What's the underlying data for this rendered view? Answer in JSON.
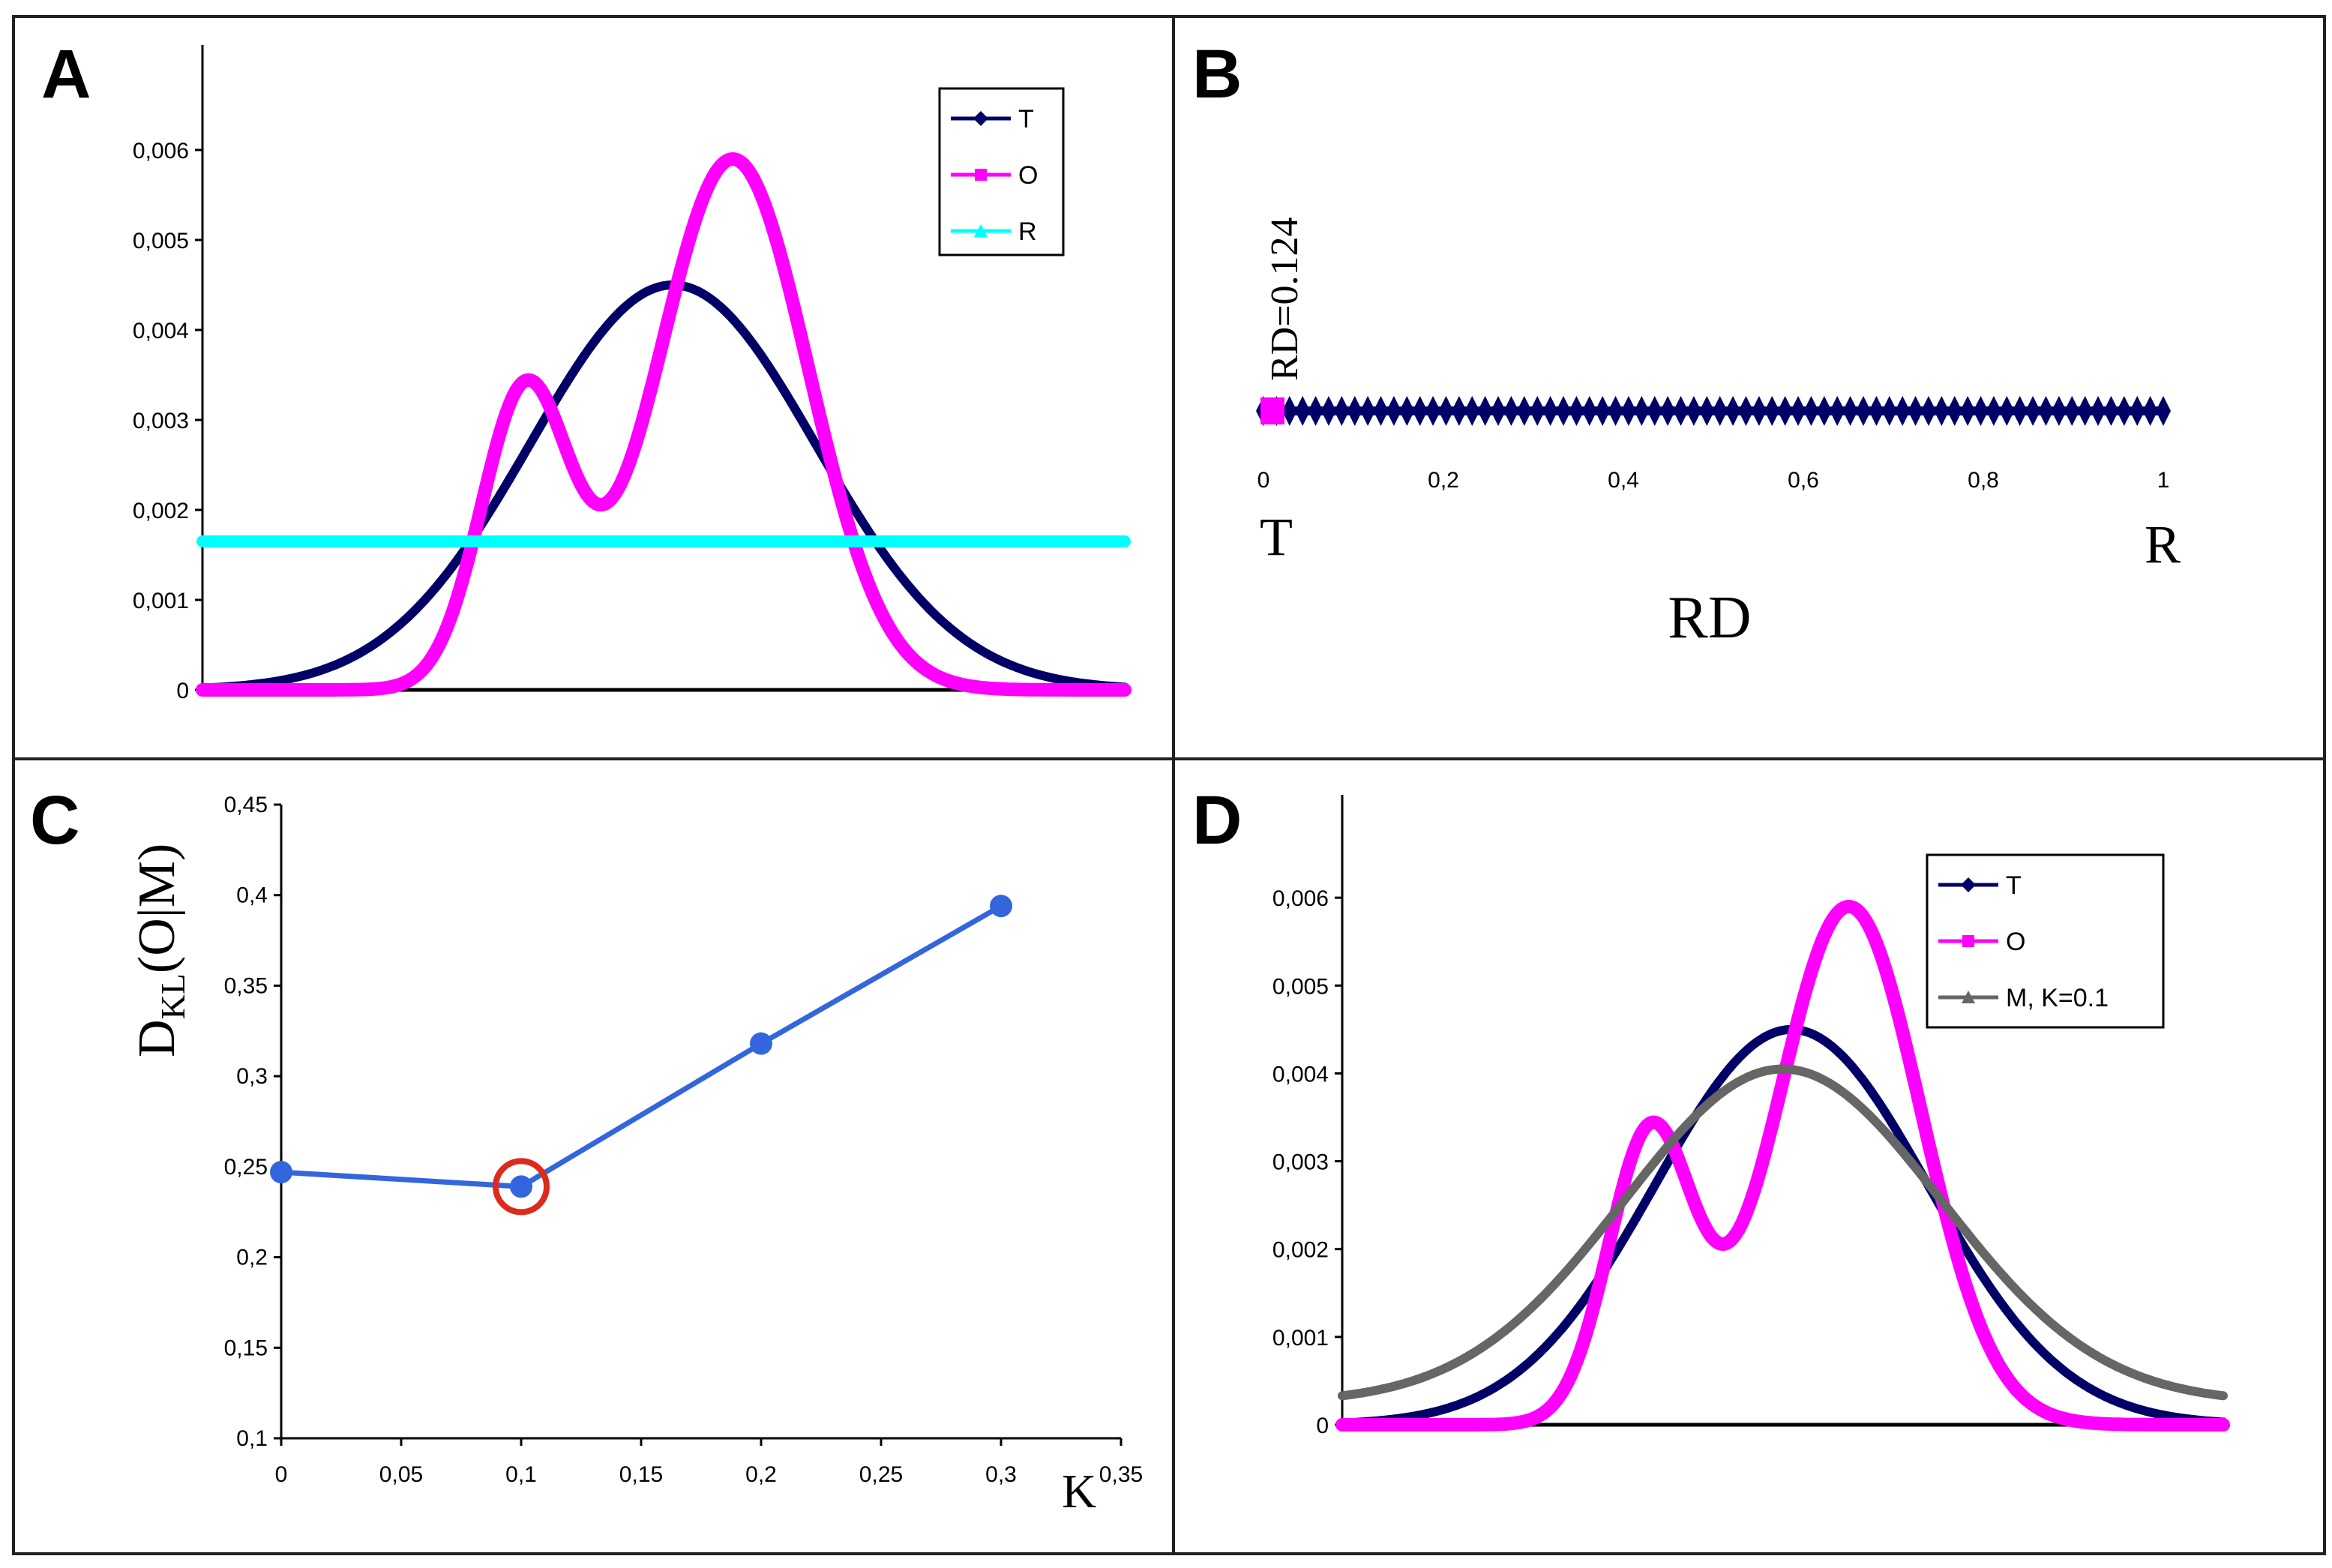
{
  "chart_data": [
    {
      "panel": "A",
      "type": "line",
      "y_ticks": [
        "0",
        "0,001",
        "0,002",
        "0,003",
        "0,004",
        "0,005",
        "0,006"
      ],
      "ylim": [
        0,
        0.007
      ],
      "xlim": [
        0,
        1
      ],
      "legend_position": "top-right",
      "series": [
        {
          "name": "T",
          "color": "#000066",
          "kind": "gaussian",
          "mean": 0.51,
          "sd": 0.155,
          "peak": 0.0045,
          "base": 0
        },
        {
          "name": "O",
          "color": "#ff00ff",
          "kind": "bimodal",
          "components": [
            {
              "mean": 0.35,
              "sd": 0.048,
              "peak": 0.0033
            },
            {
              "mean": 0.575,
              "sd": 0.082,
              "peak": 0.0059
            }
          ],
          "base": 0
        },
        {
          "name": "R",
          "color": "#00ffff",
          "kind": "flat",
          "value": 0.00165
        }
      ]
    },
    {
      "panel": "B",
      "type": "line",
      "x_ticks": [
        "0",
        "0,2",
        "0,4",
        "0,6",
        "0,8",
        "1"
      ],
      "xlim": [
        0,
        1
      ],
      "label_left": "T",
      "label_right": "R",
      "xlabel": "RD",
      "annotation": "RD=0.124",
      "series": [
        {
          "name": "RD",
          "color": "#000066",
          "x_start": 0.0,
          "x_end": 1.0,
          "marker": "diamond",
          "points": 70
        },
        {
          "name": "O",
          "color": "#ff00ff",
          "x": 0.01,
          "marker": "square"
        }
      ]
    },
    {
      "panel": "C",
      "type": "line",
      "x": [
        0,
        0.1,
        0.2,
        0.3
      ],
      "values": [
        0.247,
        0.239,
        0.318,
        0.394
      ],
      "x_ticks": [
        "0",
        "0,05",
        "0,1",
        "0,15",
        "0,2",
        "0,25",
        "0,3",
        "0,35"
      ],
      "y_ticks": [
        "0,1",
        "0,15",
        "0,2",
        "0,25",
        "0,3",
        "0,35",
        "0,4",
        "0,45"
      ],
      "xlim": [
        0,
        0.35
      ],
      "ylim": [
        0.1,
        0.45
      ],
      "xlabel": "K",
      "ylabel_main": "D",
      "ylabel_sub": "KL",
      "ylabel_rest": "(O|M)",
      "color": "#3366dd",
      "highlight": {
        "x": 0.1,
        "y": 0.239,
        "color": "#dd2a1a"
      }
    },
    {
      "panel": "D",
      "type": "line",
      "y_ticks": [
        "0",
        "0,001",
        "0,002",
        "0,003",
        "0,004",
        "0,005",
        "0,006"
      ],
      "ylim": [
        0,
        0.007
      ],
      "xlim": [
        0,
        1
      ],
      "legend_position": "top-right",
      "series": [
        {
          "name": "T",
          "color": "#000066",
          "kind": "gaussian",
          "mean": 0.51,
          "sd": 0.155,
          "peak": 0.0045,
          "base": 0
        },
        {
          "name": "O",
          "color": "#ff00ff",
          "kind": "bimodal",
          "components": [
            {
              "mean": 0.35,
              "sd": 0.048,
              "peak": 0.0033
            },
            {
              "mean": 0.575,
              "sd": 0.082,
              "peak": 0.0059
            }
          ],
          "base": 0
        },
        {
          "name": "M, K=0.1",
          "color": "#666666",
          "kind": "gaussian",
          "mean": 0.5,
          "sd": 0.18,
          "peak": 0.0038,
          "base": 0.00025
        }
      ]
    }
  ]
}
